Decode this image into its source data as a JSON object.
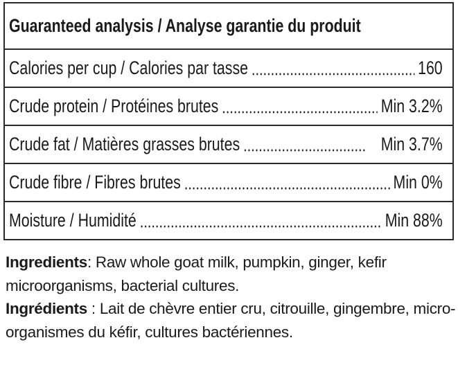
{
  "analysis": {
    "title": "Guaranteed analysis / Analyse garantie du produit",
    "rows": [
      {
        "label": "Calories per cup / Calories par tasse",
        "value": "160"
      },
      {
        "label": "Crude protein / Protéines brutes",
        "value": "Min 3.2%"
      },
      {
        "label": "Crude fat / Matières grasses brutes",
        "value": "Min 3.7%"
      },
      {
        "label": "Crude fibre / Fibres brutes",
        "value": "Min 0%"
      },
      {
        "label": "Moisture / Humidité",
        "value": "Min 88%"
      }
    ]
  },
  "ingredients": {
    "en_heading": "Ingredients",
    "en_separator": ": ",
    "en_text": "Raw whole goat milk, pumpkin, ginger, kefir microorganisms, bacterial cultures.",
    "fr_heading": "Ingrédients",
    "fr_separator": " : ",
    "fr_text": "Lait de chèvre entier cru, citrouille, gingembre, micro-organismes du kéfir, cultures bactériennes."
  }
}
